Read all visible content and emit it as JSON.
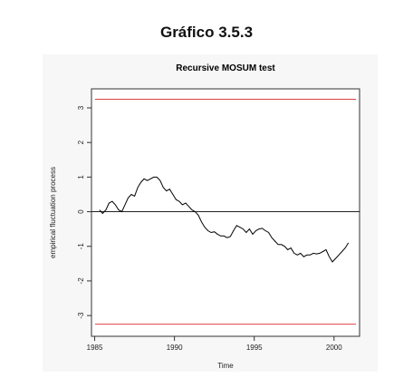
{
  "page": {
    "heading": "Gráfico 3.5.3"
  },
  "chart_data": {
    "type": "line",
    "title": "Recursive MOSUM test",
    "xlabel": "Time",
    "ylabel": "empirical fluctuation process",
    "xlim": [
      1984.8,
      2001.6
    ],
    "ylim": [
      -3.6,
      3.55
    ],
    "xticks": [
      1985,
      1990,
      1995,
      2000
    ],
    "yticks": [
      -3,
      -2,
      -1,
      0,
      1,
      2,
      3
    ],
    "boundaries": {
      "upper": 3.25,
      "lower": -3.25,
      "color": "#e04040"
    },
    "reference_line": 0,
    "line_color": "#000000",
    "grid": false,
    "series": [
      {
        "x": [
          1985.3,
          1985.5,
          1985.7,
          1985.9,
          1986.1,
          1986.3,
          1986.5,
          1986.7,
          1986.9,
          1987.1,
          1987.3,
          1987.5,
          1987.7,
          1987.9,
          1988.1,
          1988.3,
          1988.5,
          1988.7,
          1988.9,
          1989.1,
          1989.3,
          1989.5,
          1989.7,
          1989.9,
          1990.1,
          1990.3,
          1990.5,
          1990.7,
          1990.9,
          1991.1,
          1991.3,
          1991.5,
          1991.7,
          1991.9,
          1992.1,
          1992.3,
          1992.5,
          1992.7,
          1992.9,
          1993.1,
          1993.3,
          1993.5,
          1993.7,
          1993.9,
          1994.1,
          1994.3,
          1994.5,
          1994.7,
          1994.9,
          1995.1,
          1995.3,
          1995.5,
          1995.7,
          1995.9,
          1996.1,
          1996.3,
          1996.5,
          1996.7,
          1996.9,
          1997.1,
          1997.3,
          1997.5,
          1997.7,
          1997.9,
          1998.1,
          1998.3,
          1998.5,
          1998.7,
          1998.9,
          1999.1,
          1999.3,
          1999.5,
          1999.7,
          1999.9,
          2000.1,
          2000.3,
          2000.5,
          2000.7,
          2000.9
        ],
        "y": [
          0.05,
          -0.05,
          0.05,
          0.25,
          0.3,
          0.2,
          0.05,
          0.0,
          0.2,
          0.4,
          0.5,
          0.45,
          0.7,
          0.85,
          0.95,
          0.9,
          0.95,
          1.0,
          1.0,
          0.9,
          0.7,
          0.6,
          0.65,
          0.5,
          0.35,
          0.3,
          0.2,
          0.25,
          0.15,
          0.05,
          0.0,
          -0.1,
          -0.3,
          -0.45,
          -0.55,
          -0.6,
          -0.58,
          -0.65,
          -0.7,
          -0.7,
          -0.75,
          -0.72,
          -0.55,
          -0.4,
          -0.45,
          -0.5,
          -0.6,
          -0.5,
          -0.65,
          -0.55,
          -0.5,
          -0.48,
          -0.55,
          -0.6,
          -0.75,
          -0.85,
          -0.95,
          -0.95,
          -1.0,
          -1.1,
          -1.05,
          -1.2,
          -1.25,
          -1.2,
          -1.3,
          -1.25,
          -1.25,
          -1.2,
          -1.22,
          -1.2,
          -1.15,
          -1.1,
          -1.3,
          -1.45,
          -1.35,
          -1.25,
          -1.15,
          -1.05,
          -0.9
        ]
      }
    ]
  }
}
